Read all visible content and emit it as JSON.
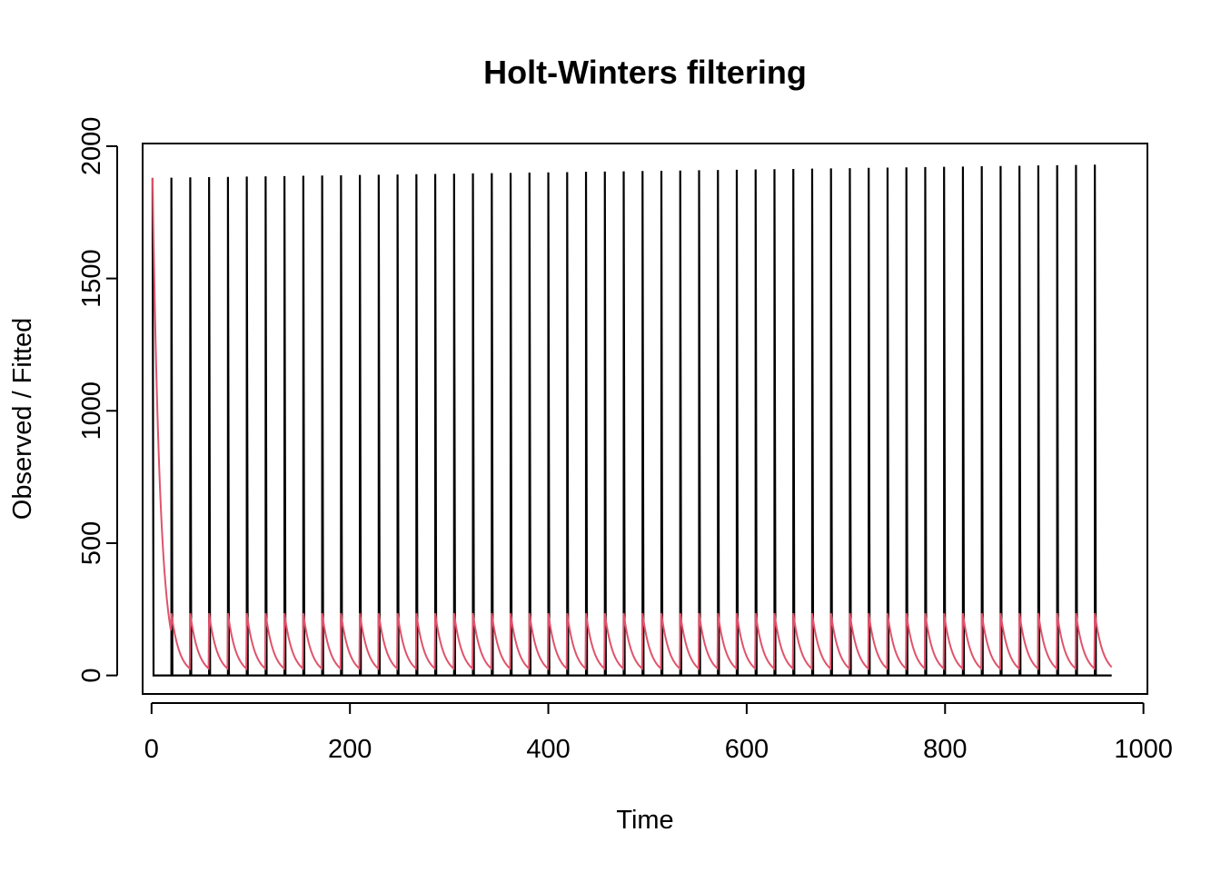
{
  "chart_data": {
    "type": "line",
    "title": "Holt-Winters filtering",
    "xlabel": "Time",
    "ylabel": "Observed / Fitted",
    "xlim": [
      -9,
      1004
    ],
    "ylim": [
      -70,
      2010
    ],
    "x_ticks": [
      0,
      200,
      400,
      600,
      800,
      1000
    ],
    "y_ticks": [
      0,
      500,
      1000,
      1500,
      2000
    ],
    "x_tick_labels": [
      "0",
      "200",
      "400",
      "600",
      "800",
      "1000"
    ],
    "y_tick_labels": [
      "0",
      "500",
      "1000",
      "1500",
      "2000"
    ],
    "grid": false,
    "legend": "none",
    "series": [
      {
        "role": "observed",
        "color": "#000000",
        "start": 1,
        "end": 968,
        "baseline": 0,
        "period": 19,
        "spike_first_peak": 1880,
        "spike_last_peak": 1930,
        "spike_last_x": 951
      },
      {
        "role": "fitted",
        "color": "#DF536B",
        "start": 1,
        "end": 968,
        "initial_value": 1880,
        "decay_rate": 0.13,
        "seasonal_peak": 235,
        "seasonal_trough": 28
      }
    ]
  }
}
